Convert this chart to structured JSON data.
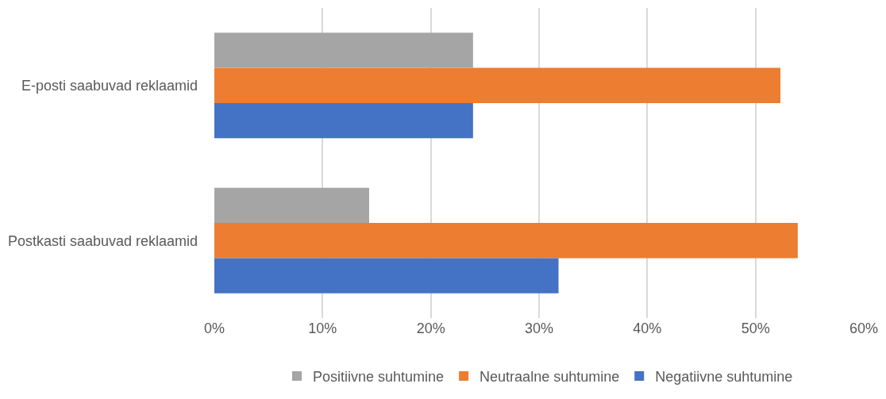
{
  "chart_data": {
    "type": "bar",
    "orientation": "horizontal",
    "categories": [
      "E-posti saabuvad reklaamid",
      "Postkasti saabuvad reklaamid"
    ],
    "series": [
      {
        "name": "Positiivne suhtumine",
        "color": "#a5a5a5",
        "values": [
          23.9,
          14.3
        ]
      },
      {
        "name": "Neutraalne suhtumine",
        "color": "#ed7d31",
        "values": [
          52.3,
          53.9
        ]
      },
      {
        "name": "Negatiivne suhtumine",
        "color": "#4472c4",
        "values": [
          23.9,
          31.8
        ]
      }
    ],
    "xlim": [
      0,
      60
    ],
    "xticks": [
      {
        "value": 0,
        "label": "0%"
      },
      {
        "value": 10,
        "label": "10%"
      },
      {
        "value": 20,
        "label": "20%"
      },
      {
        "value": 30,
        "label": "30%"
      },
      {
        "value": 40,
        "label": "40%"
      },
      {
        "value": 50,
        "label": "50%"
      },
      {
        "value": 60,
        "label": "60%"
      }
    ],
    "grid": "x",
    "legend": "bottom"
  }
}
